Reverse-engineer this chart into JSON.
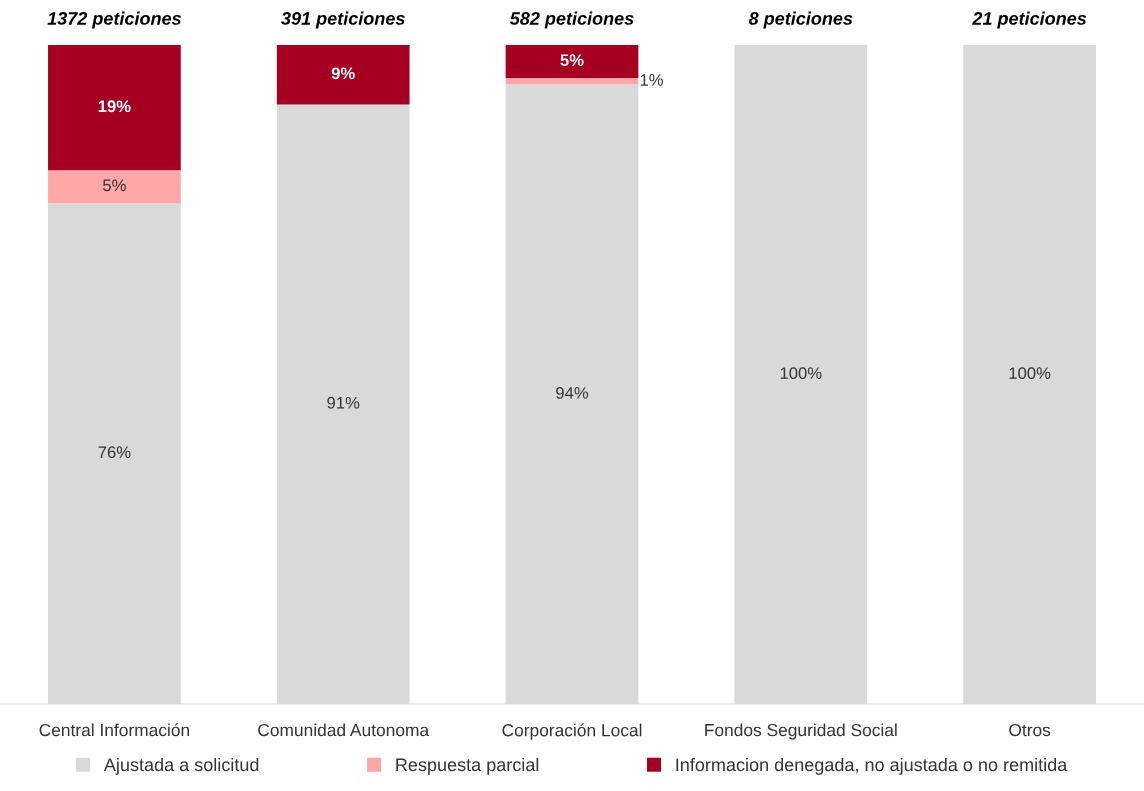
{
  "chart_data": {
    "type": "bar",
    "stacked": true,
    "categories": [
      "Central Información",
      "Comunidad Autonoma",
      "Corporación Local",
      "Fondos Seguridad Social",
      "Otros"
    ],
    "series": [
      {
        "name": "Ajustada a solicitud",
        "color": "#d9d9d9",
        "values": [
          76,
          91,
          94,
          100,
          100
        ],
        "value_labels": [
          "76%",
          "91%",
          "94%",
          "100%",
          "100%"
        ]
      },
      {
        "name": "Respuesta parcial",
        "color": "#ffa7a7",
        "values": [
          5,
          0,
          1,
          0,
          0
        ],
        "value_labels": [
          "5%",
          null,
          "1%",
          null,
          null
        ]
      },
      {
        "name": "Informacion denegada, no ajustada o no remitida",
        "color": "#a50021",
        "values": [
          19,
          9,
          5,
          0,
          0
        ],
        "value_labels": [
          "19%",
          "9%",
          "5%",
          null,
          null
        ]
      }
    ],
    "annotations": [
      {
        "text": "1372 peticiones",
        "x": "Central Información",
        "y": 100
      },
      {
        "text": "391 peticiones",
        "x": "Comunidad Autonoma",
        "y": 100
      },
      {
        "text": "582 peticiones",
        "x": "Corporación Local",
        "y": 100
      },
      {
        "text": "8 peticiones",
        "x": "Fondos Seguridad Social",
        "y": 100
      },
      {
        "text": "21 peticiones",
        "x": "Otros",
        "y": 100
      }
    ],
    "legend": "bottom",
    "grid": false
  }
}
